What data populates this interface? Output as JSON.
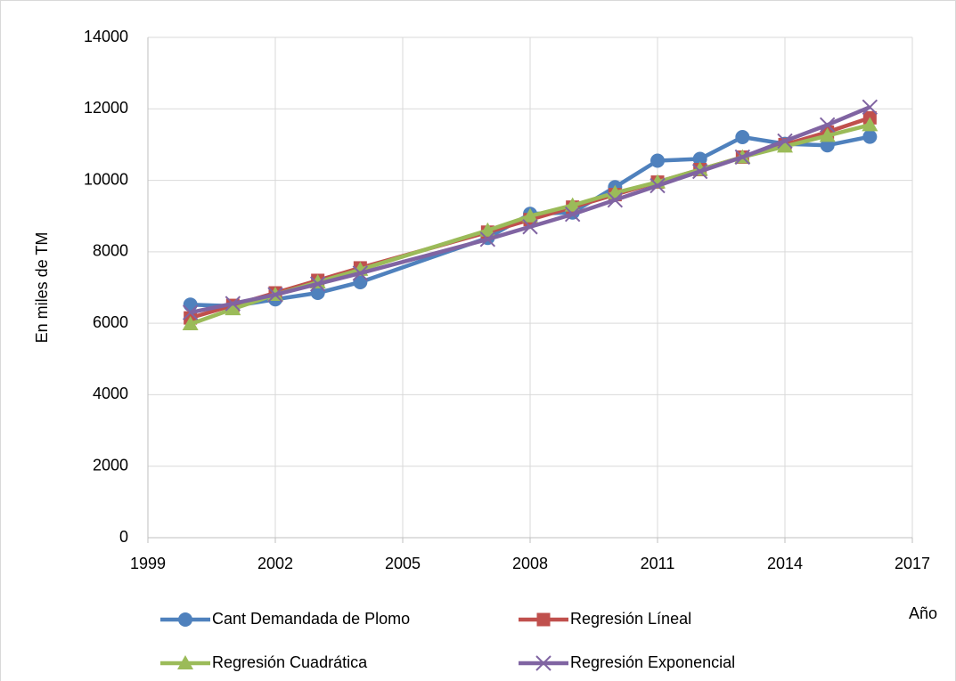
{
  "chart_data": {
    "type": "line",
    "ylabel": "En miles de TM",
    "xlabel": "Año",
    "x": [
      2000,
      2001,
      2002,
      2003,
      2004,
      2007,
      2008,
      2009,
      2010,
      2011,
      2012,
      2013,
      2014,
      2015,
      2016
    ],
    "series": [
      {
        "name": "Cant Demandada de Plomo",
        "color": "#4f81bd",
        "marker": "circle",
        "values": [
          6520,
          6480,
          6670,
          6850,
          7150,
          8390,
          9060,
          9100,
          9810,
          10550,
          10600,
          11210,
          11020,
          10980,
          11220
        ]
      },
      {
        "name": "Regresión Líneal",
        "color": "#c0504d",
        "marker": "square",
        "values": [
          6150,
          6500,
          6850,
          7200,
          7550,
          8550,
          8900,
          9250,
          9600,
          9950,
          10300,
          10650,
          11000,
          11350,
          11750
        ]
      },
      {
        "name": "Regresión Cuadrática",
        "color": "#9bbb59",
        "marker": "triangle",
        "values": [
          5980,
          6400,
          6800,
          7150,
          7500,
          8600,
          9000,
          9300,
          9650,
          9950,
          10300,
          10650,
          10950,
          11250,
          11550
        ]
      },
      {
        "name": "Regresión Exponencial",
        "color": "#8064a2",
        "marker": "x",
        "values": [
          6300,
          6550,
          6800,
          7100,
          7400,
          8350,
          8700,
          9050,
          9450,
          9850,
          10250,
          10650,
          11100,
          11550,
          12050
        ]
      }
    ],
    "xlim": [
      1999,
      2017
    ],
    "xticks": [
      1999,
      2002,
      2005,
      2008,
      2011,
      2014,
      2017
    ],
    "ylim": [
      0,
      14000
    ],
    "yticks": [
      0,
      2000,
      4000,
      6000,
      8000,
      10000,
      12000,
      14000
    ],
    "grid": true,
    "legend": "bottom"
  }
}
